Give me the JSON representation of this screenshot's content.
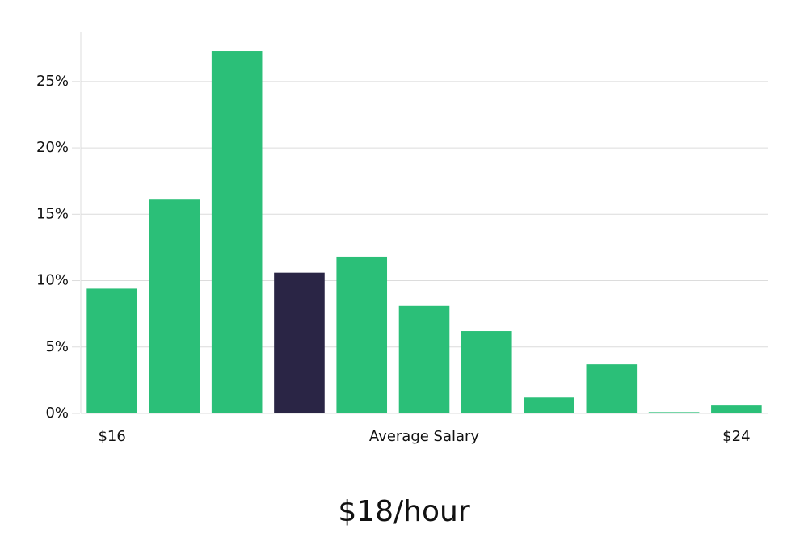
{
  "chart_data": {
    "type": "bar",
    "x_label": "Average Salary",
    "subtitle": "$18/hour",
    "categories": [
      "$16",
      null,
      null,
      null,
      null,
      null,
      null,
      null,
      null,
      null,
      "$24"
    ],
    "values": [
      9.4,
      16.1,
      27.3,
      10.6,
      11.8,
      8.1,
      6.2,
      1.2,
      3.7,
      0.1,
      0.6
    ],
    "colors": [
      "#2bbf78",
      "#2bbf78",
      "#2bbf78",
      "#2a2545",
      "#2bbf78",
      "#2bbf78",
      "#2bbf78",
      "#2bbf78",
      "#2bbf78",
      "#2bbf78",
      "#2bbf78"
    ],
    "ylim": [
      0,
      28.7
    ],
    "yticks": [
      {
        "value": 0,
        "label": "0%"
      },
      {
        "value": 5,
        "label": "5%"
      },
      {
        "value": 10,
        "label": "10%"
      },
      {
        "value": 15,
        "label": "15%"
      },
      {
        "value": 20,
        "label": "20%"
      },
      {
        "value": 25,
        "label": "25%"
      }
    ],
    "grid": true
  }
}
